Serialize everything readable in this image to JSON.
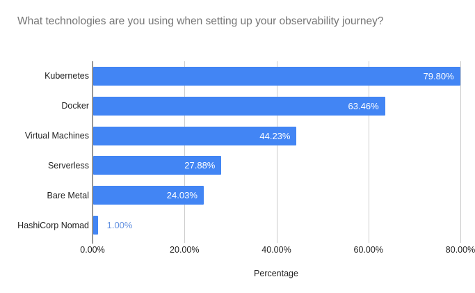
{
  "title": "What technologies are you using when setting up your observability journey?",
  "chart_data": {
    "type": "bar",
    "orientation": "horizontal",
    "title": "What technologies are you using when setting up your observability journey?",
    "categories": [
      "Kubernetes",
      "Docker",
      "Virtual Machines",
      "Serverless",
      "Bare Metal",
      "HashiCorp Nomad"
    ],
    "values": [
      79.8,
      63.46,
      44.23,
      27.88,
      24.03,
      1.0
    ],
    "data_labels": [
      "79.80%",
      "63.46%",
      "44.23%",
      "27.88%",
      "24.03%",
      "1.00%"
    ],
    "xlabel": "Percentage",
    "ylabel": "",
    "x_ticks": [
      "0.00%",
      "20.00%",
      "40.00%",
      "60.00%",
      "80.00%"
    ],
    "x_tick_values": [
      0,
      20,
      40,
      60,
      80
    ],
    "xlim": [
      0,
      82
    ],
    "grid": true,
    "legend_position": "none",
    "colors": {
      "bar": "#4285f4",
      "label_inside": "#ffffff",
      "label_outside": "#6391e0",
      "gridline": "#cccccc",
      "axis_line": "#333333",
      "title_text": "#757575",
      "tick_text": "#222222",
      "background": "#ffffff"
    }
  }
}
